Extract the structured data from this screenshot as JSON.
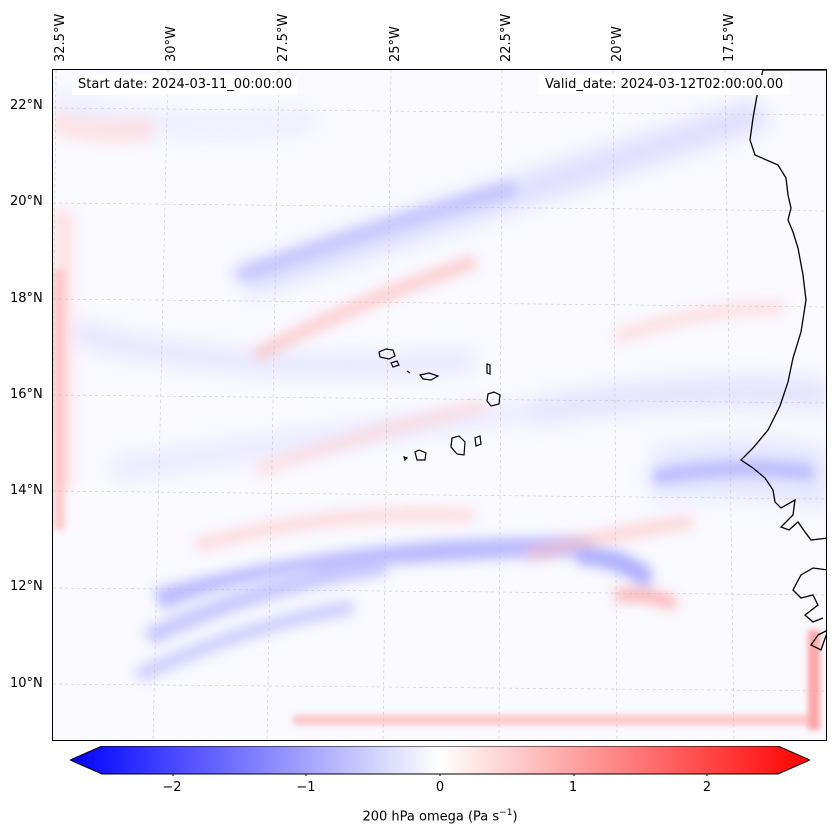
{
  "map": {
    "start_date": "Start date: 2024-03-11_00:00:00",
    "valid_date": "Valid_date: 2024-03-12T02:00:00.00",
    "lon_labels": [
      "32.5°W",
      "30°W",
      "27.5°W",
      "25°W",
      "22.5°W",
      "20°W",
      "17.5°W"
    ],
    "lat_labels": [
      "22°N",
      "20°N",
      "18°N",
      "16°N",
      "14°N",
      "12°N",
      "10°N"
    ],
    "colors": {
      "negative": "#0000ff",
      "positive": "#ff0000",
      "neutral": "#ffffff",
      "coast": "#000000"
    }
  },
  "colorbar": {
    "ticks": [
      "−2",
      "−1",
      "0",
      "1",
      "2"
    ],
    "label_main": "200 hPa omega (Pa s",
    "label_sup": "−1",
    "label_close": ")"
  }
}
